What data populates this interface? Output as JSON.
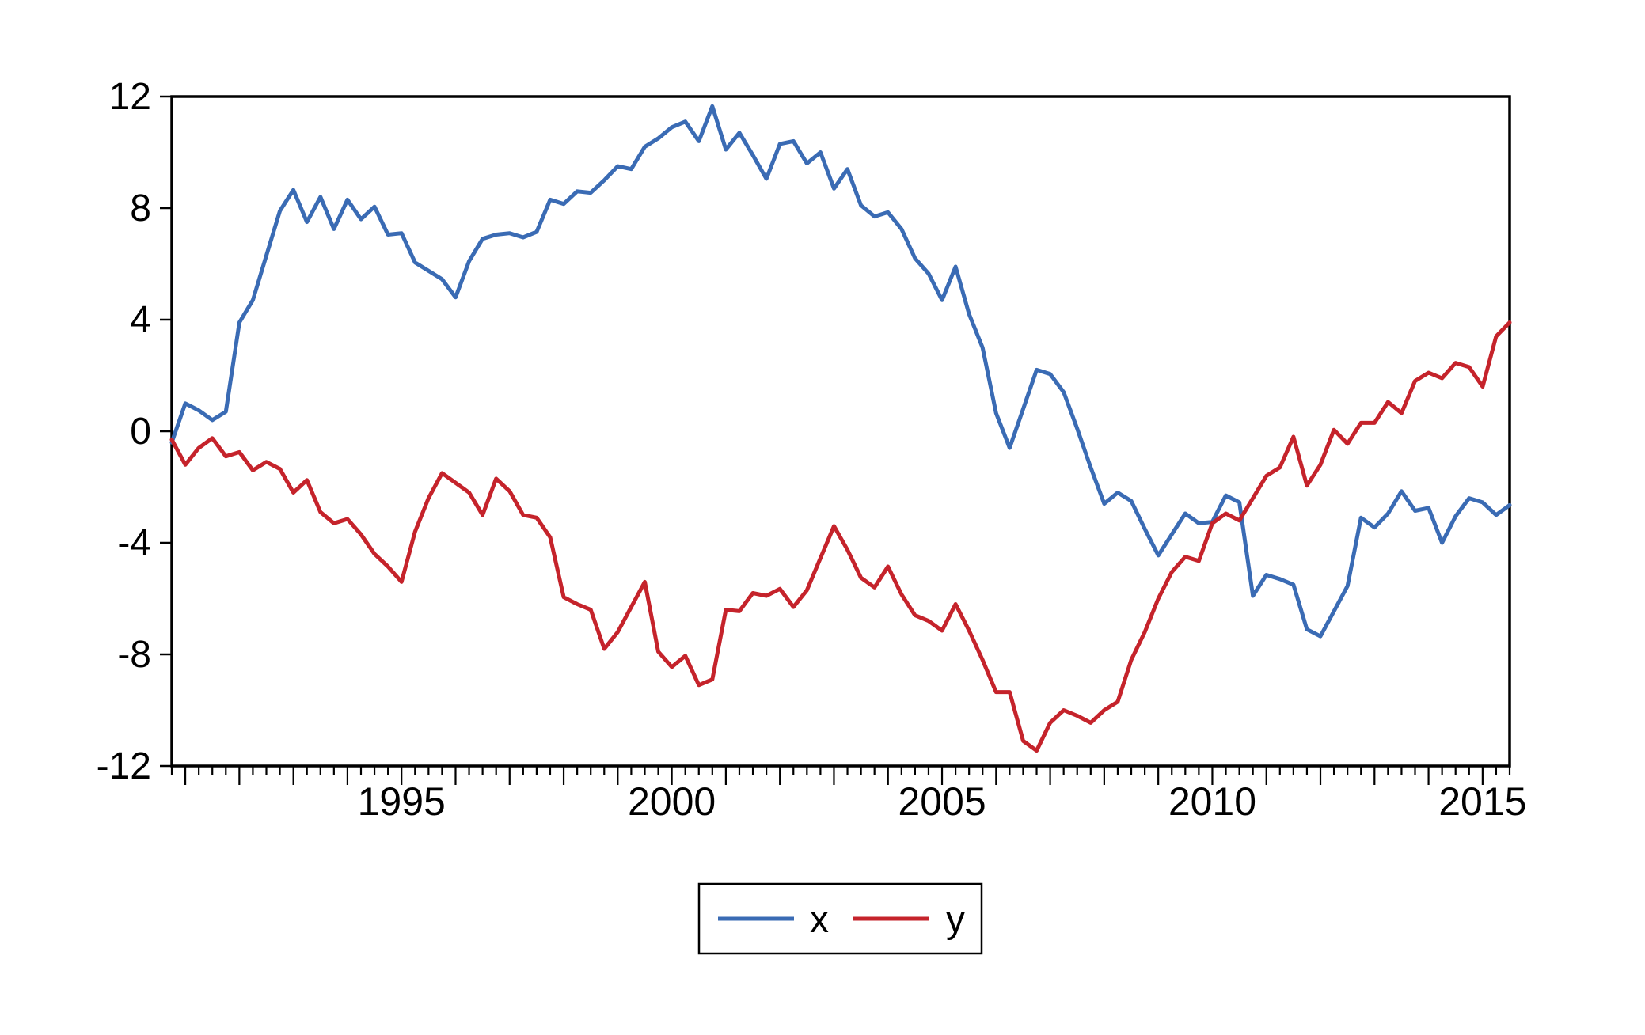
{
  "chart_data": {
    "type": "line",
    "title": "",
    "frequency": "quarterly",
    "period_start": "1990Q4",
    "period_end": "2015Q3",
    "grid": false,
    "x_axis": {
      "start": 1990.75,
      "end": 2015.5,
      "step": 0.25,
      "labeled_ticks": [
        1995,
        2000,
        2005,
        2010,
        2015
      ],
      "minor_tick_every": 0.25,
      "major_tick_every": 1
    },
    "y_axis": {
      "min": -12,
      "max": 12,
      "ticks": [
        -12,
        -8,
        -4,
        0,
        4,
        8,
        12
      ]
    },
    "legend": {
      "position": "bottom-center",
      "items": [
        {
          "label": "x",
          "color": "#3a6bb4"
        },
        {
          "label": "y",
          "color": "#c5232b"
        }
      ]
    },
    "series": [
      {
        "name": "x",
        "color": "#3a6bb4",
        "values": [
          -0.4,
          1.0,
          0.75,
          0.4,
          0.7,
          3.9,
          4.7,
          6.3,
          7.9,
          8.65,
          7.5,
          8.4,
          7.25,
          8.3,
          7.6,
          8.05,
          7.05,
          7.1,
          6.05,
          5.75,
          5.45,
          4.8,
          6.1,
          6.9,
          7.05,
          7.1,
          6.95,
          7.15,
          8.3,
          8.15,
          8.6,
          8.55,
          9.0,
          9.5,
          9.4,
          10.2,
          10.5,
          10.9,
          11.1,
          10.4,
          11.65,
          10.1,
          10.7,
          9.9,
          9.05,
          10.3,
          10.4,
          9.6,
          10.0,
          8.7,
          9.4,
          8.1,
          7.7,
          7.85,
          7.25,
          6.2,
          5.65,
          4.7,
          5.9,
          4.2,
          3.0,
          0.65,
          -0.6,
          0.8,
          2.2,
          2.05,
          1.4,
          0.1,
          -1.3,
          -2.6,
          -2.2,
          -2.5,
          -3.5,
          -4.45,
          -3.7,
          -2.95,
          -3.3,
          -3.25,
          -2.3,
          -2.55,
          -5.9,
          -5.15,
          -5.3,
          -5.5,
          -7.1,
          -7.35,
          -6.45,
          -5.55,
          -3.1,
          -3.45,
          -2.95,
          -2.15,
          -2.85,
          -2.75,
          -4.0,
          -3.05,
          -2.4,
          -2.55,
          -3.0,
          -2.65
        ]
      },
      {
        "name": "y",
        "color": "#c5232b",
        "values": [
          -0.3,
          -1.2,
          -0.6,
          -0.25,
          -0.9,
          -0.75,
          -1.4,
          -1.1,
          -1.35,
          -2.2,
          -1.75,
          -2.9,
          -3.3,
          -3.15,
          -3.7,
          -4.4,
          -4.85,
          -5.4,
          -3.6,
          -2.4,
          -1.5,
          -1.85,
          -2.2,
          -3.0,
          -1.7,
          -2.15,
          -3.0,
          -3.1,
          -3.8,
          -5.95,
          -6.2,
          -6.4,
          -7.8,
          -7.2,
          -6.3,
          -5.4,
          -7.9,
          -8.45,
          -8.05,
          -9.1,
          -8.9,
          -6.4,
          -6.45,
          -5.8,
          -5.9,
          -5.65,
          -6.3,
          -5.7,
          -4.55,
          -3.4,
          -4.25,
          -5.25,
          -5.6,
          -4.85,
          -5.85,
          -6.6,
          -6.8,
          -7.15,
          -6.2,
          -7.15,
          -8.2,
          -9.35,
          -9.35,
          -11.1,
          -11.45,
          -10.45,
          -10.0,
          -10.2,
          -10.45,
          -10.0,
          -9.7,
          -8.2,
          -7.2,
          -6.0,
          -5.05,
          -4.5,
          -4.65,
          -3.3,
          -2.95,
          -3.2,
          -2.4,
          -1.6,
          -1.3,
          -0.2,
          -1.95,
          -1.2,
          0.05,
          -0.45,
          0.3,
          0.3,
          1.05,
          0.65,
          1.8,
          2.1,
          1.9,
          2.45,
          2.3,
          1.6,
          3.4,
          3.9
        ]
      }
    ]
  }
}
